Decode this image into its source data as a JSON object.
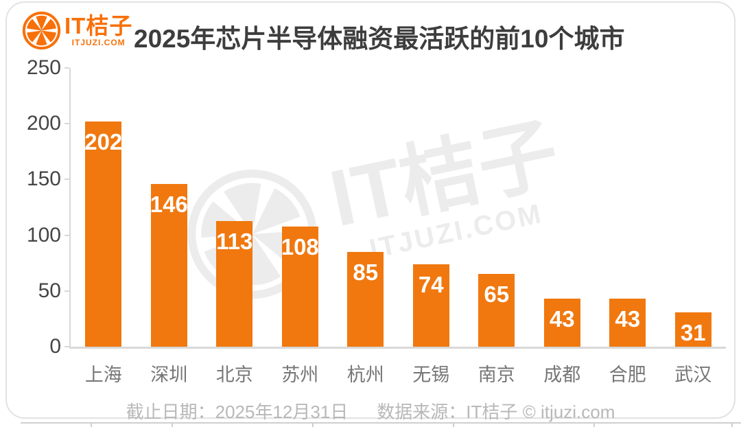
{
  "logo": {
    "brand": "IT桔子",
    "domain": "ITJUZI.COM"
  },
  "header": {
    "title": "2025年芯片半导体融资最活跃的前10个城市"
  },
  "watermark": {
    "brand": "IT桔子",
    "domain": "ITJUZI.COM"
  },
  "footer": {
    "date_label": "截止日期：2025年12月31日",
    "source_label": "数据来源：IT桔子 © itjuzi.com"
  },
  "colors": {
    "brand_orange": "#F8700A",
    "bar_orange": "#F0780F",
    "value_label": "#FFFFFF",
    "title_text": "#3D3D3D",
    "axis_text": "#454545",
    "xlabel_text": "#767676",
    "footer_text": "#B8B8B8",
    "axis_line": "#D8D8D8",
    "watermark_gray": "#ECECEC",
    "card_border": "#E2E2E2",
    "underline_gray": "#CFCFCF"
  },
  "chart_data": {
    "type": "bar",
    "title": "2025年芯片半导体融资最活跃的前10个城市",
    "categories": [
      "上海",
      "深圳",
      "北京",
      "苏州",
      "杭州",
      "无锡",
      "南京",
      "成都",
      "合肥",
      "武汉"
    ],
    "values": [
      202,
      146,
      113,
      108,
      85,
      74,
      65,
      43,
      43,
      31
    ],
    "xlabel": "",
    "ylabel": "",
    "ylim": [
      0,
      250
    ],
    "yticks": [
      0,
      50,
      100,
      150,
      200,
      250
    ],
    "grid": "off",
    "legend": "none",
    "value_labels": "inside-top, white bold"
  },
  "under_ticks_x": [
    132,
    250,
    455,
    660,
    865,
    1066
  ]
}
